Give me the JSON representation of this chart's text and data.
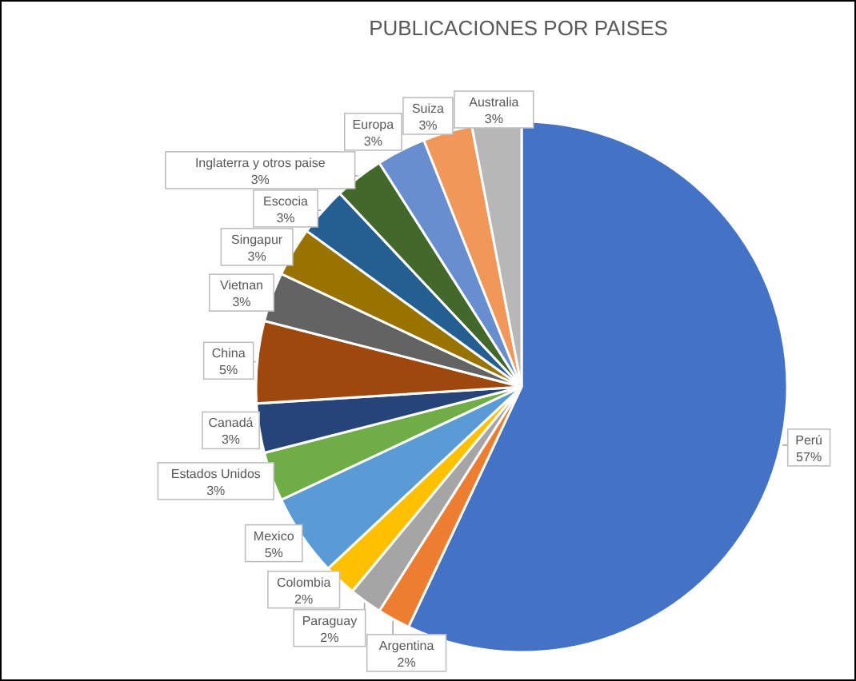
{
  "chart_data": {
    "type": "pie",
    "title": "PUBLICACIONES POR PAISES",
    "categories": [
      "Perú",
      "Argentina",
      "Paraguay",
      "Colombia",
      "Mexico",
      "Estados Unidos",
      "Canadá",
      "China",
      "Vietnan",
      "Singapur",
      "Escocia",
      "Inglaterra y otros paise",
      "Europa",
      "Suiza",
      "Australia"
    ],
    "values": [
      57,
      2,
      2,
      2,
      5,
      3,
      3,
      5,
      3,
      3,
      3,
      3,
      3,
      3,
      3
    ],
    "value_labels": [
      "57%",
      "2%",
      "2%",
      "2%",
      "5%",
      "3%",
      "3%",
      "5%",
      "3%",
      "3%",
      "3%",
      "3%",
      "3%",
      "3%",
      "3%"
    ],
    "colors": [
      "#4472c4",
      "#ed7d31",
      "#a5a5a5",
      "#ffc000",
      "#5b9bd5",
      "#70ad47",
      "#264478",
      "#9e480e",
      "#636363",
      "#997300",
      "#255e91",
      "#43682b",
      "#698ed0",
      "#f1975a",
      "#b7b7b7"
    ]
  }
}
